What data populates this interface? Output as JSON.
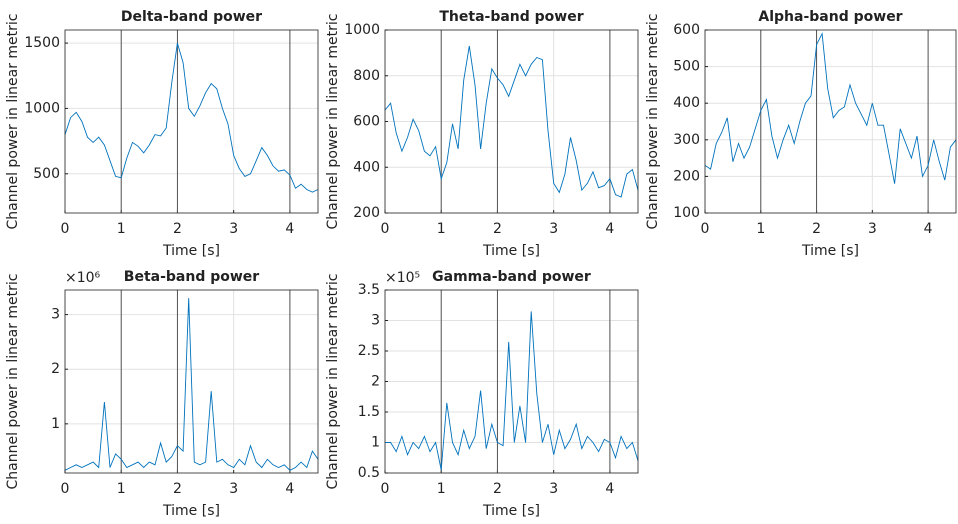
{
  "chart_data": [
    {
      "type": "line",
      "title": "Delta-band power",
      "xlabel": "Time [s]",
      "ylabel": "Channel power in linear metric",
      "color": "#0072bd",
      "x": [
        0,
        0.1,
        0.2,
        0.3,
        0.4,
        0.5,
        0.6,
        0.7,
        0.8,
        0.9,
        1,
        1.1,
        1.2,
        1.3,
        1.4,
        1.5,
        1.6,
        1.7,
        1.8,
        1.9,
        2,
        2.1,
        2.2,
        2.3,
        2.4,
        2.5,
        2.6,
        2.7,
        2.8,
        2.9,
        3,
        3.1,
        3.2,
        3.3,
        3.4,
        3.5,
        3.6,
        3.7,
        3.8,
        3.9,
        4,
        4.1,
        4.2,
        4.3,
        4.4,
        4.5
      ],
      "values": [
        800,
        930,
        970,
        900,
        780,
        740,
        780,
        720,
        600,
        480,
        470,
        620,
        740,
        710,
        660,
        720,
        800,
        790,
        850,
        1200,
        1500,
        1350,
        1000,
        940,
        1020,
        1120,
        1190,
        1150,
        1000,
        880,
        640,
        540,
        480,
        500,
        600,
        700,
        640,
        560,
        520,
        530,
        490,
        390,
        420,
        380,
        360,
        380
      ],
      "xlim": [
        0,
        4.5
      ],
      "xticks": [
        0,
        1,
        2,
        3,
        4
      ],
      "ylim": [
        200,
        1600
      ],
      "yticks": [
        500,
        1000,
        1500
      ],
      "grid": true,
      "vlines": [
        1,
        2,
        4
      ]
    },
    {
      "type": "line",
      "title": "Theta-band power",
      "xlabel": "Time [s]",
      "ylabel": "Channel power in linear metric",
      "color": "#0072bd",
      "x": [
        0,
        0.1,
        0.2,
        0.3,
        0.4,
        0.5,
        0.6,
        0.7,
        0.8,
        0.9,
        1,
        1.1,
        1.2,
        1.3,
        1.4,
        1.5,
        1.6,
        1.7,
        1.8,
        1.9,
        2,
        2.1,
        2.2,
        2.3,
        2.4,
        2.5,
        2.6,
        2.7,
        2.8,
        2.9,
        3,
        3.1,
        3.2,
        3.3,
        3.4,
        3.5,
        3.6,
        3.7,
        3.8,
        3.9,
        4,
        4.1,
        4.2,
        4.3,
        4.4,
        4.5
      ],
      "values": [
        650,
        680,
        550,
        470,
        530,
        610,
        560,
        470,
        450,
        490,
        350,
        420,
        590,
        480,
        780,
        930,
        760,
        480,
        680,
        830,
        790,
        760,
        710,
        780,
        850,
        800,
        850,
        880,
        870,
        560,
        330,
        290,
        370,
        530,
        430,
        300,
        330,
        380,
        310,
        320,
        350,
        280,
        270,
        370,
        390,
        300
      ],
      "xlim": [
        0,
        4.5
      ],
      "xticks": [
        0,
        1,
        2,
        3,
        4
      ],
      "ylim": [
        200,
        1000
      ],
      "yticks": [
        200,
        400,
        600,
        800,
        1000
      ],
      "grid": true,
      "vlines": [
        1,
        2,
        4
      ]
    },
    {
      "type": "line",
      "title": "Alpha-band power",
      "xlabel": "Time [s]",
      "ylabel": "Channel power in linear metric",
      "color": "#0072bd",
      "x": [
        0,
        0.1,
        0.2,
        0.3,
        0.4,
        0.5,
        0.6,
        0.7,
        0.8,
        0.9,
        1,
        1.1,
        1.2,
        1.3,
        1.4,
        1.5,
        1.6,
        1.7,
        1.8,
        1.9,
        2,
        2.1,
        2.2,
        2.3,
        2.4,
        2.5,
        2.6,
        2.7,
        2.8,
        2.9,
        3,
        3.1,
        3.2,
        3.3,
        3.4,
        3.5,
        3.6,
        3.7,
        3.8,
        3.9,
        4,
        4.1,
        4.2,
        4.3,
        4.4,
        4.5
      ],
      "values": [
        230,
        220,
        290,
        320,
        360,
        240,
        290,
        250,
        280,
        330,
        380,
        410,
        310,
        250,
        300,
        340,
        290,
        350,
        400,
        420,
        560,
        590,
        440,
        360,
        380,
        390,
        450,
        400,
        370,
        340,
        400,
        340,
        340,
        260,
        180,
        330,
        290,
        250,
        310,
        200,
        230,
        300,
        240,
        190,
        280,
        300
      ],
      "xlim": [
        0,
        4.5
      ],
      "xticks": [
        0,
        1,
        2,
        3,
        4
      ],
      "ylim": [
        100,
        600
      ],
      "yticks": [
        100,
        200,
        300,
        400,
        500,
        600
      ],
      "grid": true,
      "vlines": [
        1,
        2,
        4
      ]
    },
    {
      "type": "line",
      "title": "Beta-band power",
      "xlabel": "Time [s]",
      "ylabel": "Channel power in linear metric",
      "y_exponent_label": "×10⁶",
      "color": "#0072bd",
      "x": [
        0,
        0.1,
        0.2,
        0.3,
        0.4,
        0.5,
        0.6,
        0.7,
        0.8,
        0.9,
        1,
        1.1,
        1.2,
        1.3,
        1.4,
        1.5,
        1.6,
        1.7,
        1.8,
        1.9,
        2,
        2.1,
        2.2,
        2.3,
        2.4,
        2.5,
        2.6,
        2.7,
        2.8,
        2.9,
        3,
        3.1,
        3.2,
        3.3,
        3.4,
        3.5,
        3.6,
        3.7,
        3.8,
        3.9,
        4,
        4.1,
        4.2,
        4.3,
        4.4,
        4.5
      ],
      "values": [
        0.15,
        0.2,
        0.25,
        0.2,
        0.25,
        0.3,
        0.2,
        1.4,
        0.2,
        0.45,
        0.35,
        0.2,
        0.25,
        0.3,
        0.2,
        0.3,
        0.25,
        0.65,
        0.3,
        0.4,
        0.6,
        0.5,
        3.3,
        0.3,
        0.25,
        0.3,
        1.6,
        0.3,
        0.35,
        0.25,
        0.2,
        0.35,
        0.25,
        0.6,
        0.3,
        0.2,
        0.35,
        0.25,
        0.2,
        0.25,
        0.15,
        0.2,
        0.3,
        0.2,
        0.5,
        0.35
      ],
      "xlim": [
        0,
        4.5
      ],
      "xticks": [
        0,
        1,
        2,
        3,
        4
      ],
      "ylim": [
        0.1,
        3.45
      ],
      "yticks": [
        1,
        2,
        3
      ],
      "grid": true,
      "vlines": [
        1,
        2,
        4
      ]
    },
    {
      "type": "line",
      "title": "Gamma-band power",
      "xlabel": "Time [s]",
      "ylabel": "Channel power in linear metric",
      "y_exponent_label": "×10⁵",
      "color": "#0072bd",
      "x": [
        0,
        0.1,
        0.2,
        0.3,
        0.4,
        0.5,
        0.6,
        0.7,
        0.8,
        0.9,
        1,
        1.1,
        1.2,
        1.3,
        1.4,
        1.5,
        1.6,
        1.7,
        1.8,
        1.9,
        2,
        2.1,
        2.2,
        2.3,
        2.4,
        2.5,
        2.6,
        2.7,
        2.8,
        2.9,
        3,
        3.1,
        3.2,
        3.3,
        3.4,
        3.5,
        3.6,
        3.7,
        3.8,
        3.9,
        4,
        4.1,
        4.2,
        4.3,
        4.4,
        4.5
      ],
      "values": [
        1.0,
        1.0,
        0.85,
        1.1,
        0.8,
        1.0,
        0.9,
        1.1,
        0.85,
        1.0,
        0.55,
        1.65,
        1.0,
        0.8,
        1.2,
        0.9,
        1.1,
        1.85,
        0.9,
        1.3,
        1.0,
        0.95,
        2.65,
        1.0,
        1.6,
        1.0,
        3.15,
        1.8,
        1.0,
        1.3,
        0.8,
        1.2,
        0.9,
        1.05,
        1.3,
        0.9,
        1.1,
        1.0,
        0.85,
        1.05,
        1.0,
        0.75,
        1.1,
        0.9,
        1.0,
        0.7
      ],
      "xlim": [
        0,
        4.5
      ],
      "xticks": [
        0,
        1,
        2,
        3,
        4
      ],
      "ylim": [
        0.5,
        3.5
      ],
      "yticks": [
        0.5,
        1,
        1.5,
        2,
        2.5,
        3,
        3.5
      ],
      "grid": true,
      "vlines": [
        1,
        2,
        4
      ]
    }
  ]
}
